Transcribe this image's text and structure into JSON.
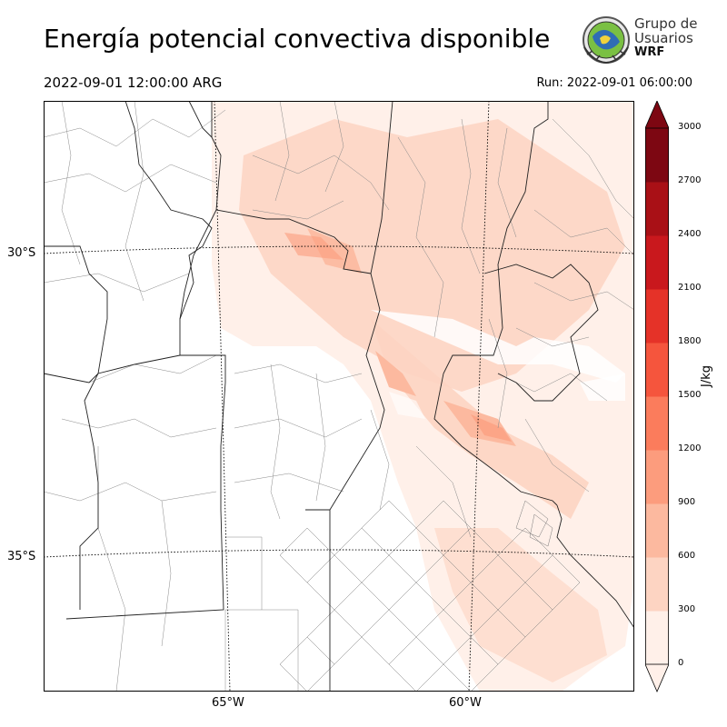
{
  "header": {
    "title": "Energía potencial convectiva disponible",
    "valid_time": "2022-09-01 12:00:00 ARG",
    "run_time": "Run: 2022-09-01 06:00:00"
  },
  "logo": {
    "line1": "Grupo de",
    "line2": "Usuarios",
    "line3": "WRF"
  },
  "map": {
    "lat_labels": [
      "30°S",
      "35°S"
    ],
    "lon_labels": [
      "65°W",
      "60°W"
    ]
  },
  "colorbar": {
    "unit": "J/kg",
    "ticks": [
      "3000",
      "2700",
      "2400",
      "2100",
      "1800",
      "1500",
      "1200",
      "900",
      "600",
      "300",
      "0"
    ],
    "colors": [
      "#fff0e9",
      "#fdd4c2",
      "#fcb99f",
      "#fc9c7d",
      "#fb7c5c",
      "#f5553d",
      "#e53228",
      "#c9181d",
      "#a91016",
      "#7d0712"
    ]
  }
}
